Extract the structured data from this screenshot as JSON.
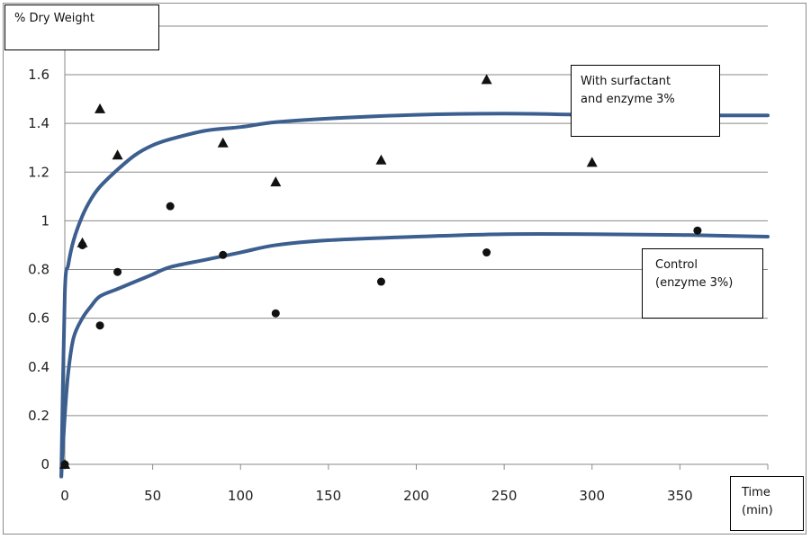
{
  "chart_data": {
    "type": "scatter",
    "ylabel": "% Dry Weight",
    "xlabel_lines": [
      "Time",
      "(min)"
    ],
    "xlim": [
      0,
      400
    ],
    "ylim": [
      0,
      1.6
    ],
    "x_ticks": [
      0,
      50,
      100,
      150,
      200,
      250,
      300,
      350
    ],
    "y_ticks": [
      0,
      0.2,
      0.4,
      0.6,
      0.8,
      1,
      1.2,
      1.4,
      1.6
    ],
    "y_tick_labels": [
      "0",
      "0.2",
      "0.4",
      "0.6",
      "0.8",
      "1",
      "1.2",
      "1.4",
      "1.6"
    ],
    "grid": true,
    "series": [
      {
        "marker": "triangle",
        "color": "#111111",
        "points": [
          [
            0,
            0
          ],
          [
            10,
            0.91
          ],
          [
            20,
            1.46
          ],
          [
            30,
            1.27
          ],
          [
            90,
            1.32
          ],
          [
            120,
            1.16
          ],
          [
            180,
            1.25
          ],
          [
            240,
            1.58
          ],
          [
            300,
            1.24
          ]
        ]
      },
      {
        "marker": "circle",
        "color": "#111111",
        "points": [
          [
            0,
            0
          ],
          [
            10,
            0.9
          ],
          [
            20,
            0.57
          ],
          [
            30,
            0.79
          ],
          [
            60,
            1.06
          ],
          [
            90,
            0.86
          ],
          [
            120,
            0.62
          ],
          [
            180,
            0.75
          ],
          [
            240,
            0.87
          ],
          [
            360,
            0.96
          ]
        ]
      }
    ],
    "fit_curves": [
      {
        "color": "#3c5f8f",
        "points": [
          [
            -2,
            -0.05
          ],
          [
            0,
            0.7
          ],
          [
            2,
            0.82
          ],
          [
            5,
            0.92
          ],
          [
            10,
            1.02
          ],
          [
            15,
            1.09
          ],
          [
            20,
            1.14
          ],
          [
            30,
            1.21
          ],
          [
            40,
            1.27
          ],
          [
            50,
            1.31
          ],
          [
            60,
            1.335
          ],
          [
            80,
            1.37
          ],
          [
            100,
            1.385
          ],
          [
            120,
            1.405
          ],
          [
            150,
            1.42
          ],
          [
            200,
            1.435
          ],
          [
            250,
            1.44
          ],
          [
            300,
            1.435
          ],
          [
            350,
            1.433
          ],
          [
            400,
            1.433
          ]
        ]
      },
      {
        "color": "#3c5f8f",
        "points": [
          [
            -2,
            -0.05
          ],
          [
            0,
            0.2
          ],
          [
            2,
            0.38
          ],
          [
            5,
            0.52
          ],
          [
            10,
            0.6
          ],
          [
            15,
            0.65
          ],
          [
            20,
            0.69
          ],
          [
            30,
            0.72
          ],
          [
            40,
            0.75
          ],
          [
            50,
            0.78
          ],
          [
            60,
            0.81
          ],
          [
            80,
            0.84
          ],
          [
            100,
            0.87
          ],
          [
            120,
            0.9
          ],
          [
            150,
            0.92
          ],
          [
            200,
            0.935
          ],
          [
            250,
            0.945
          ],
          [
            300,
            0.945
          ],
          [
            350,
            0.942
          ],
          [
            400,
            0.935
          ]
        ]
      }
    ],
    "annotations": [
      {
        "id": "surfactant",
        "lines": [
          "With surfactant",
          "and enzyme 3%"
        ]
      },
      {
        "id": "control",
        "lines": [
          "Control",
          "(enzyme 3%)"
        ]
      }
    ]
  }
}
